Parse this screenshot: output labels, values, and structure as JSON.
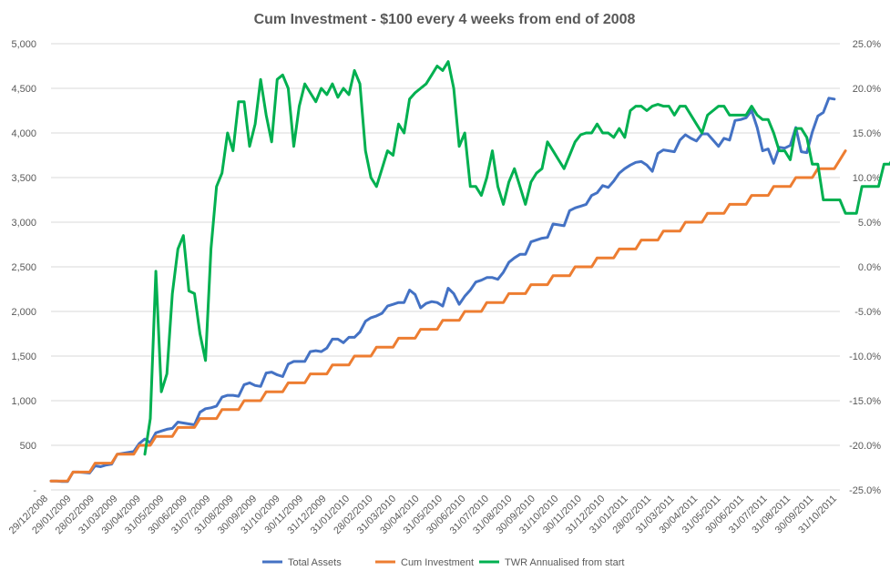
{
  "chart_data": {
    "type": "line",
    "title": "Cum Investment - $100 every 4 weeks from end of 2008",
    "x_tick_labels": [
      "29/12/2008",
      "29/01/2009",
      "28/02/2009",
      "31/03/2009",
      "30/04/2009",
      "31/05/2009",
      "30/06/2009",
      "31/07/2009",
      "31/08/2009",
      "30/09/2009",
      "31/10/2009",
      "30/11/2009",
      "31/12/2009",
      "31/01/2010",
      "28/02/2010",
      "31/03/2010",
      "30/04/2010",
      "31/05/2010",
      "30/06/2010",
      "31/07/2010",
      "31/08/2010",
      "30/09/2010",
      "31/10/2010",
      "30/11/2010",
      "31/12/2010",
      "31/01/2011",
      "28/02/2011",
      "31/03/2011",
      "30/04/2011",
      "31/05/2011",
      "30/06/2011",
      "31/07/2011",
      "31/08/2011",
      "30/09/2011",
      "31/10/2011"
    ],
    "y_left": {
      "ticks": [
        0,
        500,
        1000,
        1500,
        2000,
        2500,
        3000,
        3500,
        4000,
        4500,
        5000
      ],
      "labels": [
        "-",
        "500",
        "1,000",
        "1,500",
        "2,000",
        "2,500",
        "3,000",
        "3,500",
        "4,000",
        "4,500",
        "5,000"
      ],
      "min": 0,
      "max": 5000
    },
    "y_right": {
      "ticks": [
        -25,
        -20,
        -15,
        -10,
        -5,
        0,
        5,
        10,
        15,
        20,
        25
      ],
      "labels": [
        "-25.0%",
        "-20.0%",
        "-15.0%",
        "-10.0%",
        "-5.0%",
        "0.0%",
        "5.0%",
        "10.0%",
        "15.0%",
        "20.0%",
        "25.0%"
      ],
      "min": -25,
      "max": 25
    },
    "grid": true,
    "legend_position": "bottom",
    "series": [
      {
        "name": "Total Assets",
        "axis": "left",
        "color": "#4472C4",
        "values": [
          100,
          100,
          95,
          95,
          200,
          200,
          195,
          190,
          270,
          260,
          280,
          290,
          400,
          410,
          420,
          430,
          520,
          570,
          530,
          640,
          660,
          680,
          690,
          760,
          750,
          740,
          730,
          870,
          910,
          920,
          940,
          1040,
          1060,
          1060,
          1050,
          1180,
          1200,
          1170,
          1160,
          1310,
          1320,
          1290,
          1270,
          1410,
          1440,
          1440,
          1440,
          1550,
          1560,
          1550,
          1590,
          1690,
          1690,
          1650,
          1710,
          1710,
          1770,
          1890,
          1930,
          1950,
          1980,
          2060,
          2080,
          2100,
          2100,
          2240,
          2190,
          2040,
          2090,
          2110,
          2100,
          2060,
          2260,
          2200,
          2080,
          2170,
          2240,
          2330,
          2350,
          2380,
          2380,
          2360,
          2440,
          2550,
          2600,
          2640,
          2640,
          2780,
          2800,
          2820,
          2830,
          2980,
          2970,
          2960,
          3130,
          3160,
          3180,
          3200,
          3300,
          3330,
          3410,
          3390,
          3460,
          3550,
          3600,
          3640,
          3670,
          3680,
          3640,
          3570,
          3770,
          3810,
          3800,
          3790,
          3920,
          3980,
          3940,
          3910,
          3990,
          3990,
          3920,
          3850,
          3940,
          3920,
          4140,
          4150,
          4170,
          4250,
          4060,
          3800,
          3820,
          3660,
          3840,
          3830,
          3860,
          4060,
          3790,
          3780,
          4010,
          4190,
          4230,
          4390,
          4380
        ]
      },
      {
        "name": "Cum Investment",
        "axis": "left",
        "color": "#ED7D31",
        "values": [
          100,
          100,
          100,
          100,
          200,
          200,
          200,
          200,
          300,
          300,
          300,
          300,
          400,
          400,
          400,
          400,
          500,
          500,
          500,
          600,
          600,
          600,
          600,
          700,
          700,
          700,
          700,
          800,
          800,
          800,
          800,
          900,
          900,
          900,
          900,
          1000,
          1000,
          1000,
          1000,
          1100,
          1100,
          1100,
          1100,
          1200,
          1200,
          1200,
          1200,
          1300,
          1300,
          1300,
          1300,
          1400,
          1400,
          1400,
          1400,
          1500,
          1500,
          1500,
          1500,
          1600,
          1600,
          1600,
          1600,
          1700,
          1700,
          1700,
          1700,
          1800,
          1800,
          1800,
          1800,
          1900,
          1900,
          1900,
          1900,
          2000,
          2000,
          2000,
          2000,
          2100,
          2100,
          2100,
          2100,
          2200,
          2200,
          2200,
          2200,
          2300,
          2300,
          2300,
          2300,
          2400,
          2400,
          2400,
          2400,
          2500,
          2500,
          2500,
          2500,
          2600,
          2600,
          2600,
          2600,
          2700,
          2700,
          2700,
          2700,
          2800,
          2800,
          2800,
          2800,
          2900,
          2900,
          2900,
          2900,
          3000,
          3000,
          3000,
          3000,
          3100,
          3100,
          3100,
          3100,
          3200,
          3200,
          3200,
          3200,
          3300,
          3300,
          3300,
          3300,
          3400,
          3400,
          3400,
          3400,
          3500,
          3500,
          3500,
          3500,
          3600,
          3600,
          3600,
          3600,
          3700,
          3800
        ]
      },
      {
        "name": "TWR Annualised from start",
        "axis": "right",
        "start_index": 17,
        "color": "#00B050",
        "values": [
          -21,
          -17,
          -0.5,
          -14,
          -12,
          -3,
          2,
          3.5,
          -2.7,
          -3,
          -7.5,
          -10.5,
          2,
          9,
          10.5,
          15,
          13,
          18.5,
          18.5,
          13.5,
          16,
          21,
          17,
          14,
          21,
          21.5,
          20,
          13.5,
          18,
          20.5,
          19.5,
          18.5,
          20,
          19.3,
          20.5,
          19,
          20,
          19.3,
          22,
          20.5,
          13,
          10,
          9,
          11,
          13,
          12.5,
          16,
          15,
          18.8,
          19.5,
          20,
          20.5,
          21.5,
          22.5,
          22,
          23,
          20,
          13.5,
          15,
          9,
          9,
          8,
          10,
          13,
          9,
          7,
          9.5,
          11,
          9,
          7,
          9.5,
          10.5,
          11,
          14,
          13,
          12,
          11,
          12.5,
          14,
          14.8,
          15,
          15,
          16,
          15,
          15,
          14.5,
          15.5,
          14.5,
          17.5,
          18,
          18,
          17.5,
          18,
          18.2,
          18,
          18,
          17,
          18,
          18,
          17,
          16,
          15,
          17,
          17.5,
          18,
          18,
          17,
          17,
          17,
          17,
          18,
          17,
          16.5,
          16.5,
          15,
          13,
          13,
          12,
          15.5,
          15.5,
          14.5,
          11.5,
          11.5,
          7.5,
          7.5,
          7.5,
          7.5,
          6,
          6,
          6,
          9,
          9,
          9,
          9,
          11.5,
          11.5,
          12.5,
          12.5
        ]
      }
    ]
  }
}
